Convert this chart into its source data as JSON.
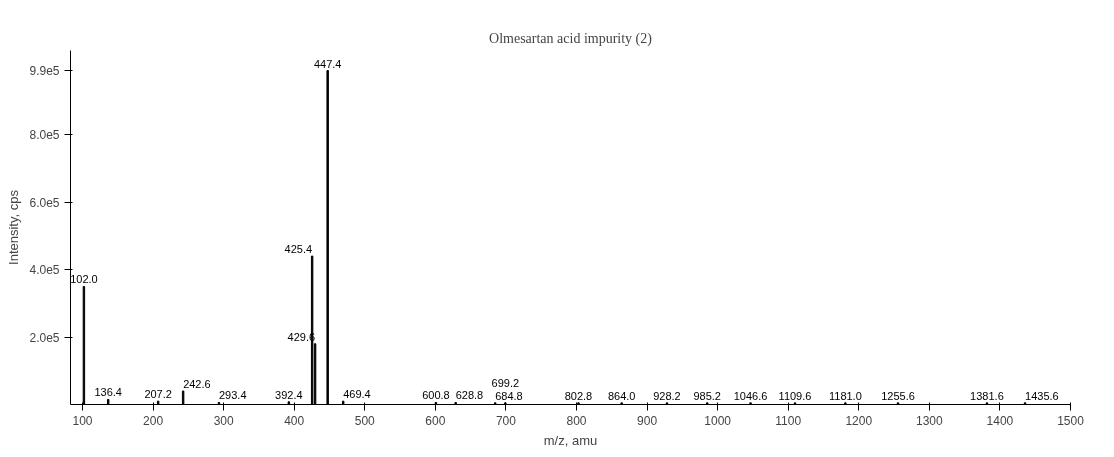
{
  "chart_data": {
    "type": "bar",
    "title": "Olmesartan acid impurity (2)",
    "xlabel": "m/z, amu",
    "ylabel": "Intensity, cps",
    "x": [
      102.0,
      136.4,
      207.2,
      242.6,
      293.4,
      392.4,
      425.4,
      429.6,
      447.4,
      469.4,
      600.8,
      628.8,
      684.8,
      699.2,
      802.8,
      864.0,
      928.2,
      985.2,
      1046.6,
      1109.6,
      1181.0,
      1255.6,
      1381.6,
      1435.6
    ],
    "values": [
      350000,
      15000,
      10000,
      40000,
      6000,
      8000,
      440000,
      180000,
      990000,
      10000,
      6000,
      6000,
      5000,
      5000,
      5000,
      5000,
      5000,
      5000,
      5000,
      5000,
      5000,
      5000,
      5000,
      5000
    ],
    "annotations": [
      {
        "text": "102.0",
        "x": 102.0,
        "y": 350000
      },
      {
        "text": "136.4",
        "x": 136.4,
        "y": 15000
      },
      {
        "text": "207.2",
        "x": 207.2,
        "y": 10000
      },
      {
        "text": "242.6",
        "x": 242.6,
        "y": 40000
      },
      {
        "text": "293.4",
        "x": 293.4,
        "y": 6000
      },
      {
        "text": "392.4",
        "x": 392.4,
        "y": 8000
      },
      {
        "text": "425.4",
        "x": 425.4,
        "y": 440000
      },
      {
        "text": "429.6",
        "x": 429.6,
        "y": 180000
      },
      {
        "text": "447.4",
        "x": 447.4,
        "y": 990000
      },
      {
        "text": "469.4",
        "x": 469.4,
        "y": 10000
      },
      {
        "text": "600.8",
        "x": 600.8,
        "y": 6000
      },
      {
        "text": "628.8",
        "x": 628.8,
        "y": 6000
      },
      {
        "text": "684.8",
        "x": 684.8,
        "y": 5000
      },
      {
        "text": "699.2",
        "x": 699.2,
        "y": 5000
      },
      {
        "text": "802.8",
        "x": 802.8,
        "y": 5000
      },
      {
        "text": "864.0",
        "x": 864.0,
        "y": 5000
      },
      {
        "text": "928.2",
        "x": 928.2,
        "y": 5000
      },
      {
        "text": "985.2",
        "x": 985.2,
        "y": 5000
      },
      {
        "text": "1046.6",
        "x": 1046.6,
        "y": 5000
      },
      {
        "text": "1109.6",
        "x": 1109.6,
        "y": 5000
      },
      {
        "text": "1181.0",
        "x": 1181.0,
        "y": 5000
      },
      {
        "text": "1255.6",
        "x": 1255.6,
        "y": 5000
      },
      {
        "text": "1381.6",
        "x": 1381.6,
        "y": 5000
      },
      {
        "text": "1435.6",
        "x": 1435.6,
        "y": 5000
      }
    ],
    "color": "#000000",
    "xlim": [
      83,
      1500
    ],
    "xticks": [
      100,
      200,
      300,
      400,
      500,
      600,
      700,
      800,
      900,
      1000,
      1100,
      1200,
      1300,
      1400,
      1500
    ],
    "ylim": [
      0,
      990000
    ],
    "yticks": [
      {
        "value": 200000,
        "label": "2.0e5"
      },
      {
        "value": 400000,
        "label": "4.0e5"
      },
      {
        "value": 600000,
        "label": "6.0e5"
      },
      {
        "value": 800000,
        "label": "8.0e5"
      },
      {
        "value": 990000,
        "label": "9.9e5"
      }
    ],
    "grid": false
  }
}
